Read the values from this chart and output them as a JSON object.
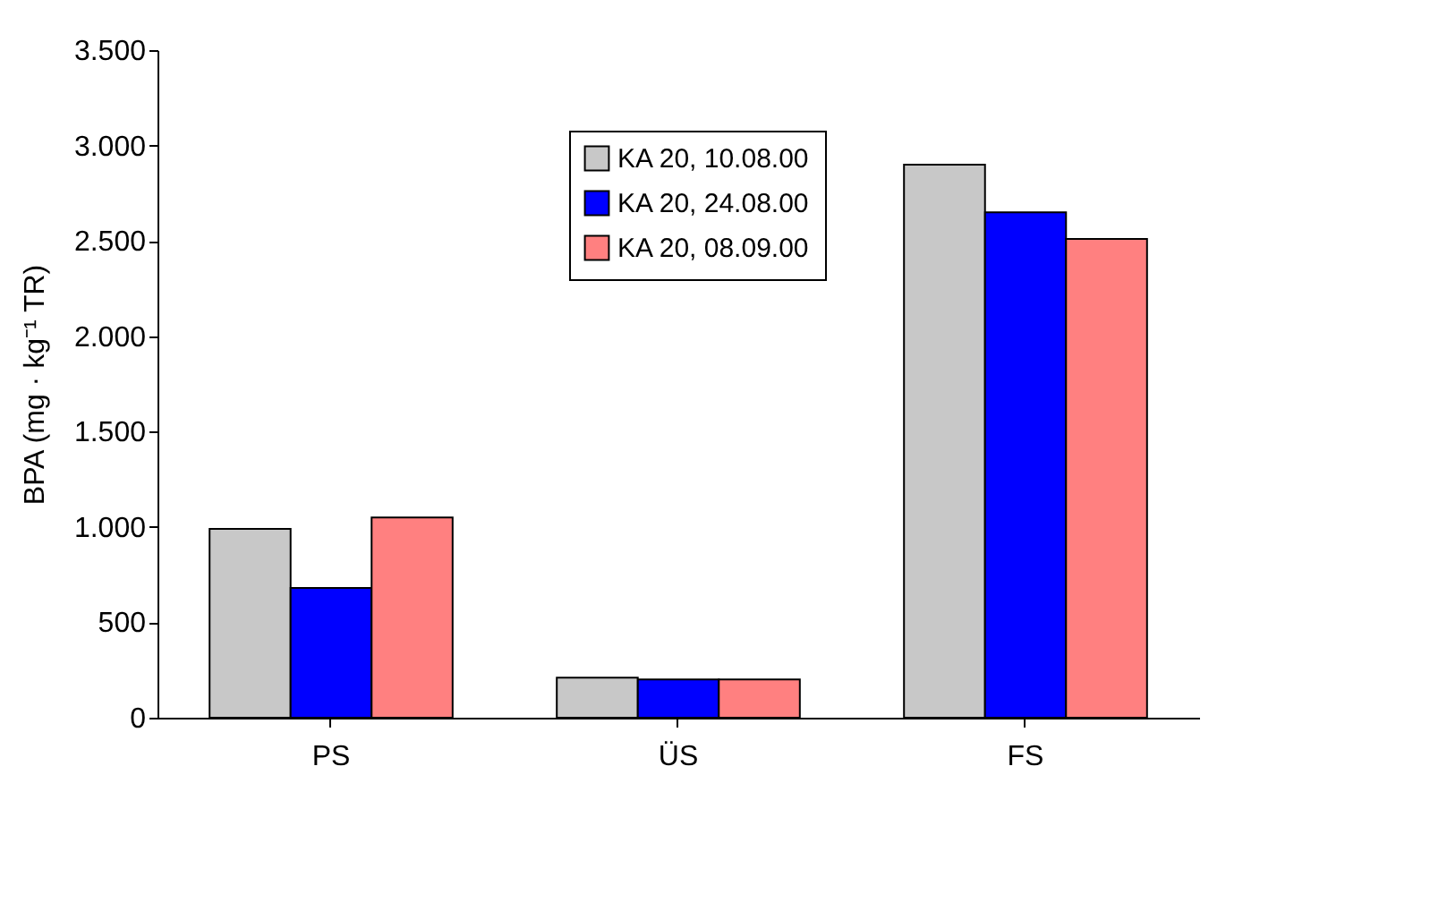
{
  "chart_data": {
    "type": "bar",
    "ylabel": "BPA (mg · kg⁻¹ TR)",
    "categories": [
      "PS",
      "ÜS",
      "FS"
    ],
    "series": [
      {
        "name": "KA 20, 10.08.00",
        "color": "#c8c8c8",
        "values": [
          990,
          210,
          2900
        ]
      },
      {
        "name": "KA 20, 24.08.00",
        "color": "#0000ff",
        "values": [
          680,
          200,
          2650
        ]
      },
      {
        "name": "KA 20, 08.09.00",
        "color": "#ff8080",
        "values": [
          1050,
          200,
          2510
        ]
      }
    ],
    "ylim": [
      0,
      3500
    ],
    "yticks": [
      0,
      500,
      {
        "value": 1000,
        "label": "1.000"
      },
      {
        "value": 1500,
        "label": "1.500"
      },
      {
        "value": 2000,
        "label": "2.000"
      },
      {
        "value": 2500,
        "label": "2.500"
      },
      {
        "value": 3000,
        "label": "3.000"
      },
      {
        "value": 3500,
        "label": "3.500"
      }
    ],
    "grid": false,
    "legend": "top"
  }
}
